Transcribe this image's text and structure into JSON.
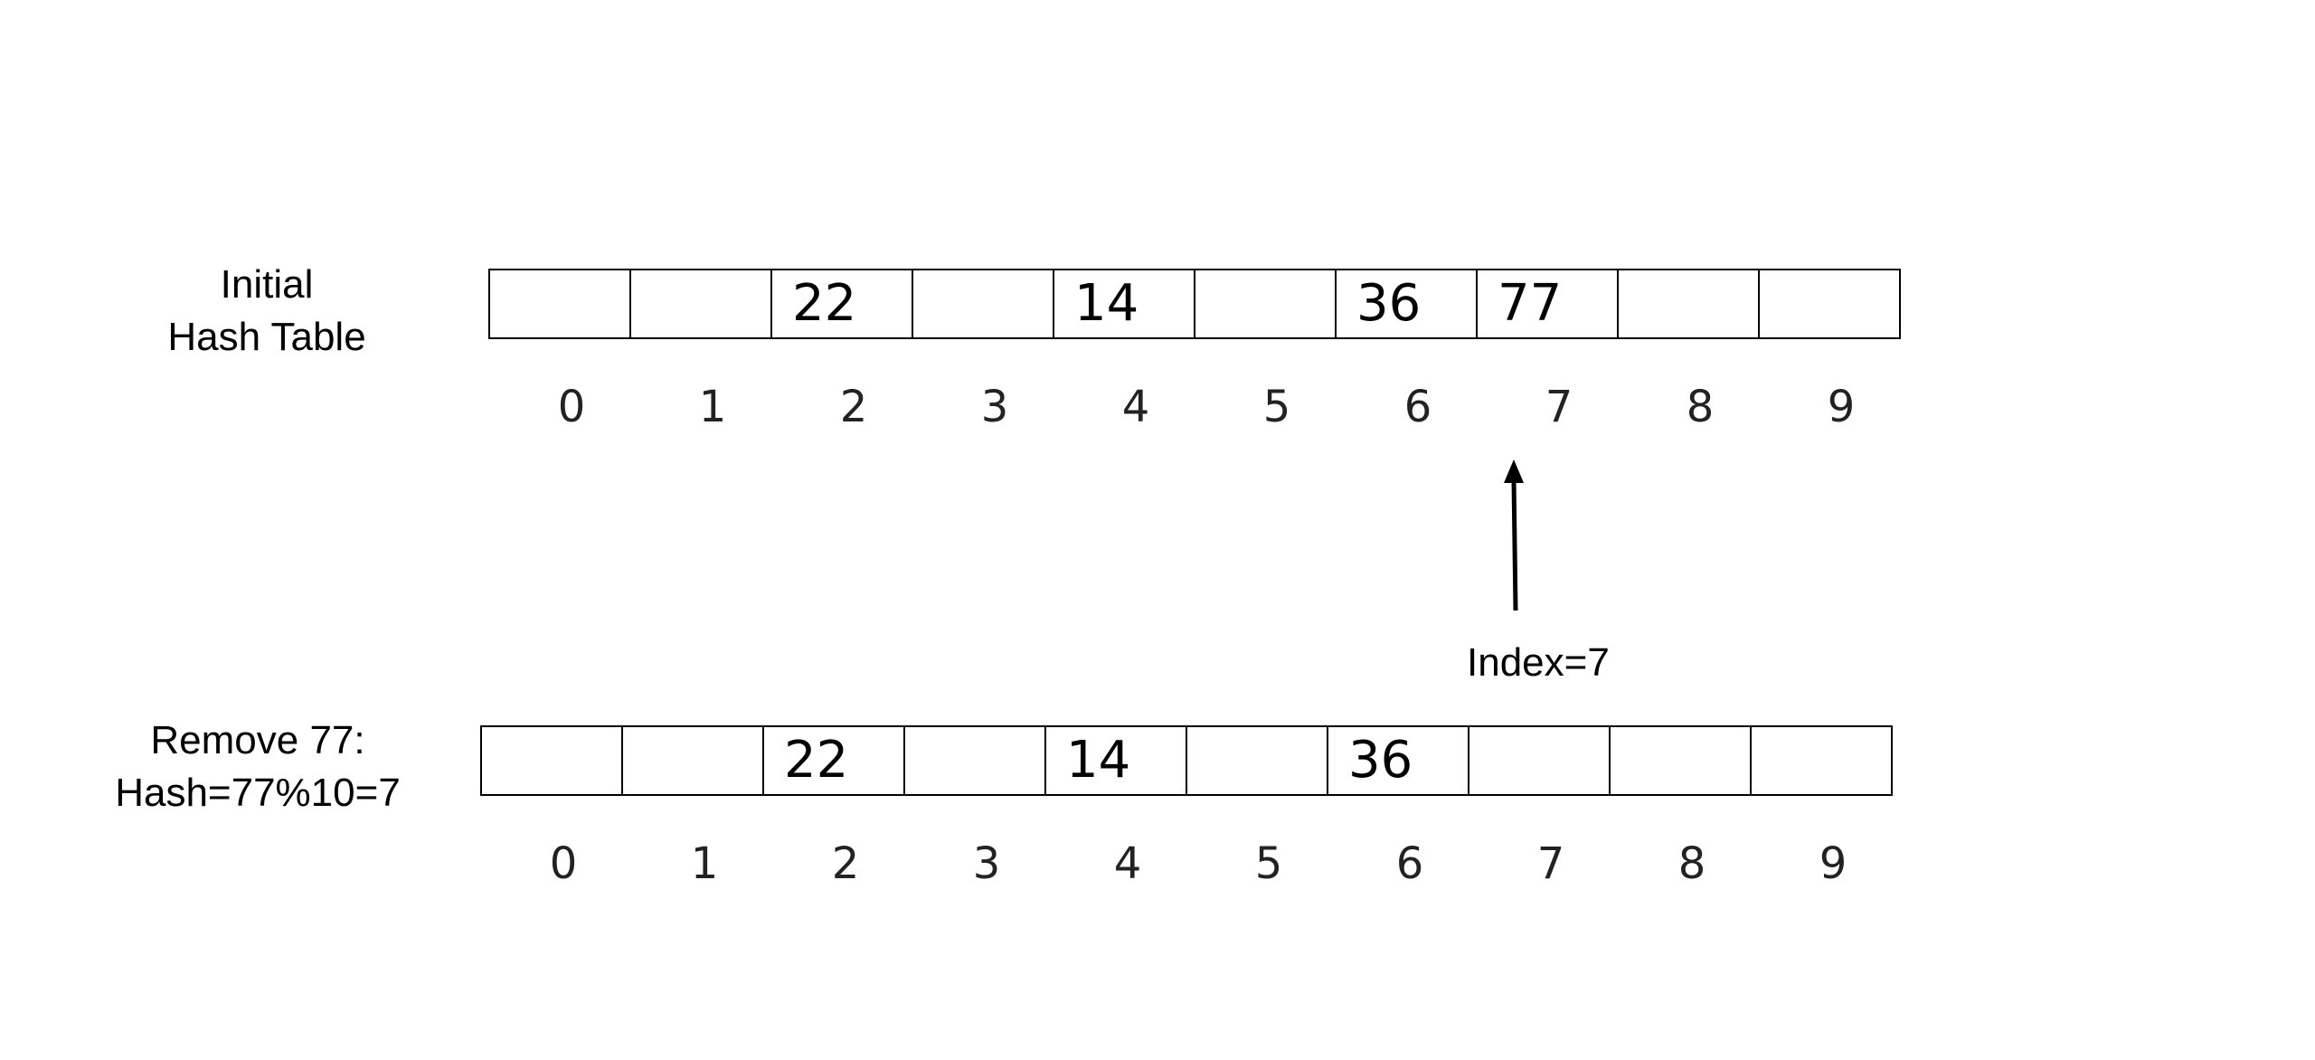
{
  "initial": {
    "label_line1": "Initial",
    "label_line2": "Hash Table",
    "cells": [
      "",
      "",
      "22",
      "",
      "14",
      "",
      "36",
      "77",
      "",
      ""
    ],
    "indices": [
      "0",
      "1",
      "2",
      "3",
      "4",
      "5",
      "6",
      "7",
      "8",
      "9"
    ]
  },
  "after": {
    "label_line1": "Remove 77:",
    "label_line2": "Hash=77%10=7",
    "cells": [
      "",
      "",
      "22",
      "",
      "14",
      "",
      "36",
      "",
      "",
      ""
    ],
    "indices": [
      "0",
      "1",
      "2",
      "3",
      "4",
      "5",
      "6",
      "7",
      "8",
      "9"
    ]
  },
  "pointer": {
    "label": "Index=7"
  }
}
